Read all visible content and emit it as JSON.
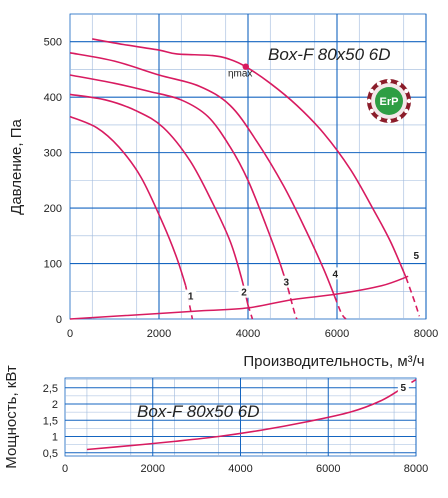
{
  "chart_data": [
    {
      "id": "pressure",
      "type": "line",
      "title": "Box-F 80x50 6D",
      "xlabel": "Производительность, м³/ч",
      "ylabel": "Давление, Па",
      "xlim": [
        0,
        8000
      ],
      "ylim": [
        0,
        550
      ],
      "grid": true,
      "x_ticks": [
        "0",
        "2000",
        "4000",
        "6000",
        "8000"
      ],
      "y_ticks": [
        "0",
        "100",
        "200",
        "300",
        "400",
        "500"
      ],
      "badge_text": "ErP",
      "eta_label": "ηmax",
      "eta_point": {
        "x": 3950,
        "y": 455
      },
      "series": [
        {
          "name": "1",
          "values": [
            [
              0,
              365
            ],
            [
              600,
              345
            ],
            [
              1100,
              310
            ],
            [
              1600,
              255
            ],
            [
              2100,
              170
            ],
            [
              2400,
              110
            ],
            [
              2600,
              60
            ],
            [
              2750,
              0
            ]
          ],
          "dashed_from_index": 6
        },
        {
          "name": "2",
          "values": [
            [
              0,
              405
            ],
            [
              800,
              395
            ],
            [
              1500,
              375
            ],
            [
              2100,
              345
            ],
            [
              2700,
              285
            ],
            [
              3200,
              210
            ],
            [
              3600,
              140
            ],
            [
              3850,
              75
            ],
            [
              4000,
              25
            ],
            [
              4100,
              0
            ]
          ],
          "dashed_from_index": 8
        },
        {
          "name": "3",
          "values": [
            [
              0,
              440
            ],
            [
              1000,
              425
            ],
            [
              1800,
              410
            ],
            [
              2500,
              395
            ],
            [
              3100,
              365
            ],
            [
              3600,
              310
            ],
            [
              4000,
              250
            ],
            [
              4400,
              170
            ],
            [
              4700,
              105
            ],
            [
              4900,
              55
            ],
            [
              5050,
              10
            ],
            [
              5100,
              0
            ]
          ],
          "dashed_from_index": 9
        },
        {
          "name": "4",
          "values": [
            [
              0,
              480
            ],
            [
              1000,
              465
            ],
            [
              2000,
              440
            ],
            [
              2900,
              420
            ],
            [
              3600,
              385
            ],
            [
              4200,
              320
            ],
            [
              4800,
              240
            ],
            [
              5300,
              160
            ],
            [
              5700,
              90
            ],
            [
              5950,
              40
            ],
            [
              6100,
              10
            ],
            [
              6200,
              0
            ]
          ],
          "dashed_from_index": 9
        },
        {
          "name": "5",
          "values": [
            [
              500,
              505
            ],
            [
              1200,
              495
            ],
            [
              2000,
              485
            ],
            [
              2400,
              478
            ],
            [
              3200,
              475
            ],
            [
              3600,
              468
            ],
            [
              3950,
              455
            ],
            [
              4500,
              425
            ],
            [
              5100,
              385
            ],
            [
              5700,
              335
            ],
            [
              6300,
              270
            ],
            [
              6800,
              200
            ],
            [
              7200,
              140
            ],
            [
              7550,
              75
            ],
            [
              7750,
              30
            ],
            [
              7850,
              5
            ]
          ],
          "dashed_from_index": 13
        }
      ],
      "system_curve": [
        [
          0,
          0
        ],
        [
          2000,
          10
        ],
        [
          3000,
          15
        ],
        [
          4000,
          20
        ],
        [
          5000,
          35
        ],
        [
          6000,
          45
        ],
        [
          7000,
          60
        ],
        [
          7600,
          77
        ]
      ]
    },
    {
      "id": "power",
      "type": "line",
      "title": "Box-F 80x50 6D",
      "xlabel": "",
      "ylabel": "Мощность, кВт",
      "xlim": [
        0,
        8000
      ],
      "ylim": [
        0.4,
        2.8
      ],
      "grid": true,
      "x_ticks": [
        "0",
        "2000",
        "4000",
        "6000",
        "8000"
      ],
      "y_ticks": [
        "0,5",
        "1",
        "1,5",
        "2",
        "2,5"
      ],
      "series": [
        {
          "name": "5",
          "values": [
            [
              500,
              0.6
            ],
            [
              1500,
              0.72
            ],
            [
              2500,
              0.85
            ],
            [
              3500,
              1.0
            ],
            [
              4500,
              1.2
            ],
            [
              5500,
              1.45
            ],
            [
              6500,
              1.75
            ],
            [
              7200,
              2.1
            ],
            [
              7700,
              2.5
            ],
            [
              8000,
              2.75
            ]
          ],
          "dashed_from_index": 8
        }
      ]
    }
  ]
}
